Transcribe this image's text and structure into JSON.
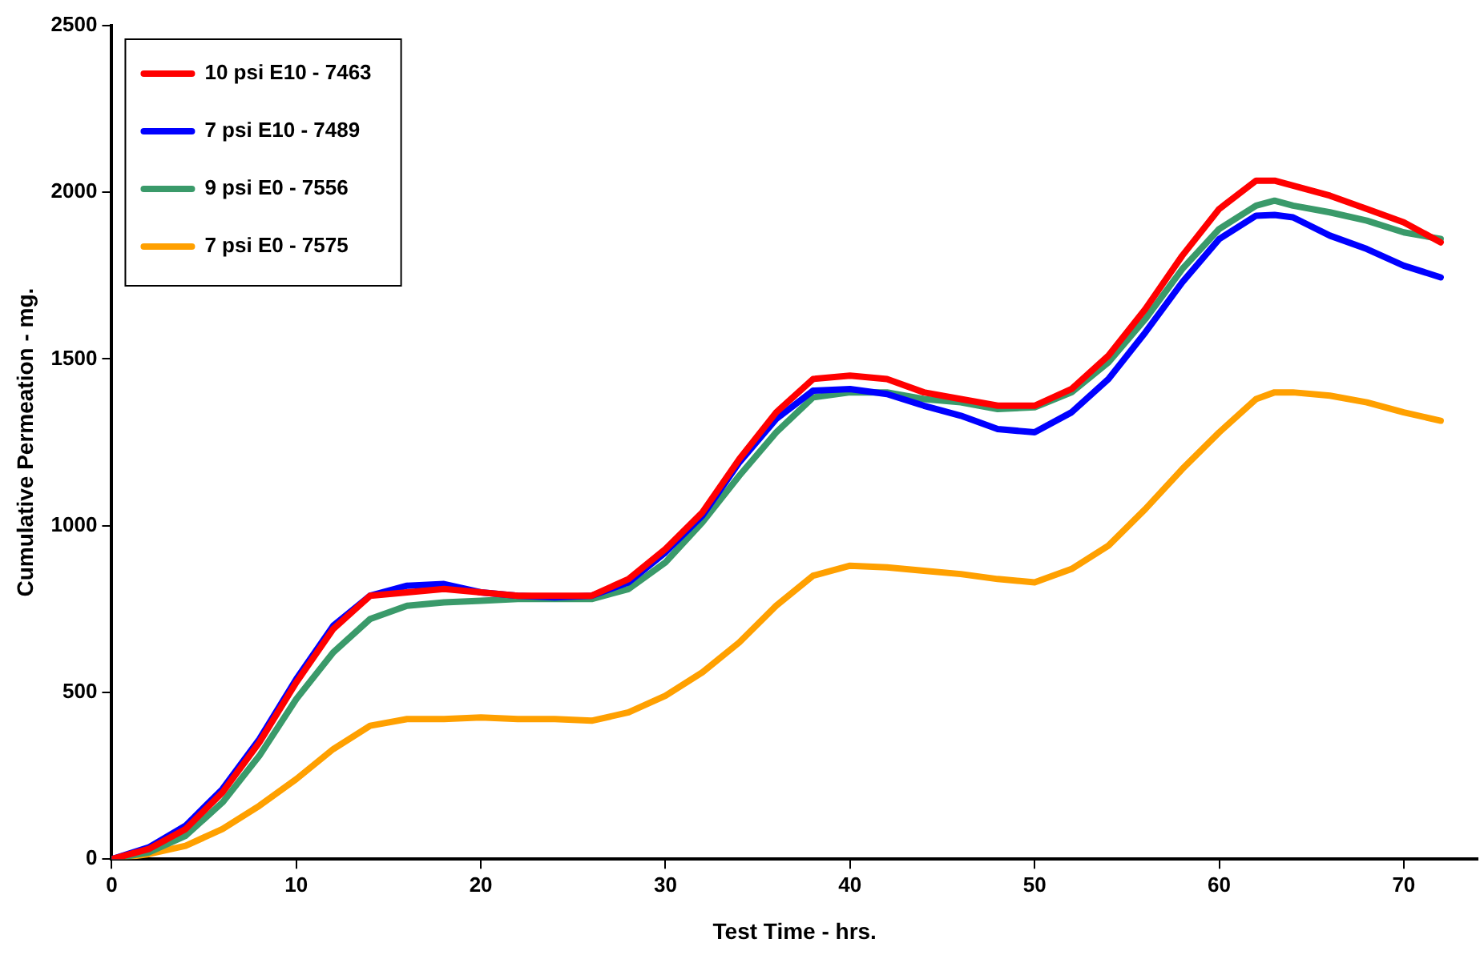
{
  "chart_data": {
    "type": "line",
    "xlabel": "Test Time - hrs.",
    "ylabel": "Cumulative Permeation - mg.",
    "x": [
      0,
      2,
      4,
      6,
      8,
      10,
      12,
      14,
      16,
      18,
      20,
      22,
      24,
      26,
      28,
      30,
      32,
      34,
      36,
      38,
      40,
      42,
      44,
      46,
      48,
      50,
      52,
      54,
      56,
      58,
      60,
      62,
      63,
      64,
      66,
      68,
      70,
      72
    ],
    "series": [
      {
        "name": "10 psi E10 - 7463",
        "color": "#ff0000",
        "values": [
          0,
          30,
          90,
          200,
          350,
          530,
          690,
          790,
          800,
          810,
          800,
          790,
          790,
          790,
          840,
          930,
          1040,
          1200,
          1340,
          1440,
          1450,
          1440,
          1400,
          1380,
          1360,
          1360,
          1410,
          1510,
          1650,
          1810,
          1950,
          2035,
          2035,
          2020,
          1990,
          1950,
          1910,
          1850
        ]
      },
      {
        "name": "7 psi E10 - 7489",
        "color": "#0000ff",
        "values": [
          0,
          35,
          100,
          210,
          360,
          540,
          700,
          790,
          820,
          825,
          800,
          790,
          785,
          790,
          830,
          920,
          1030,
          1190,
          1320,
          1405,
          1410,
          1395,
          1360,
          1330,
          1290,
          1280,
          1340,
          1440,
          1580,
          1730,
          1860,
          1930,
          1932,
          1925,
          1870,
          1830,
          1780,
          1745
        ]
      },
      {
        "name": "9 psi E0 - 7556",
        "color": "#3a9a6a",
        "values": [
          0,
          20,
          70,
          170,
          310,
          480,
          620,
          720,
          760,
          770,
          775,
          780,
          780,
          780,
          810,
          890,
          1010,
          1150,
          1280,
          1385,
          1400,
          1400,
          1380,
          1370,
          1350,
          1355,
          1400,
          1490,
          1620,
          1770,
          1890,
          1960,
          1975,
          1960,
          1940,
          1915,
          1880,
          1860
        ]
      },
      {
        "name": "7 psi E0 - 7575",
        "color": "#ffa000",
        "values": [
          0,
          15,
          40,
          90,
          160,
          240,
          330,
          400,
          420,
          420,
          425,
          420,
          420,
          415,
          440,
          490,
          560,
          650,
          760,
          850,
          880,
          875,
          865,
          855,
          840,
          830,
          870,
          940,
          1050,
          1170,
          1280,
          1380,
          1400,
          1400,
          1390,
          1370,
          1340,
          1315
        ]
      }
    ],
    "xlim": [
      0,
      74
    ],
    "xticks": [
      0,
      10,
      20,
      30,
      40,
      50,
      60,
      70
    ],
    "ylim": [
      0,
      2500
    ],
    "yticks": [
      0,
      500,
      1000,
      1500,
      2000,
      2500
    ],
    "grid": false,
    "legend": "top left",
    "marker": "none",
    "line_style": "solid"
  }
}
